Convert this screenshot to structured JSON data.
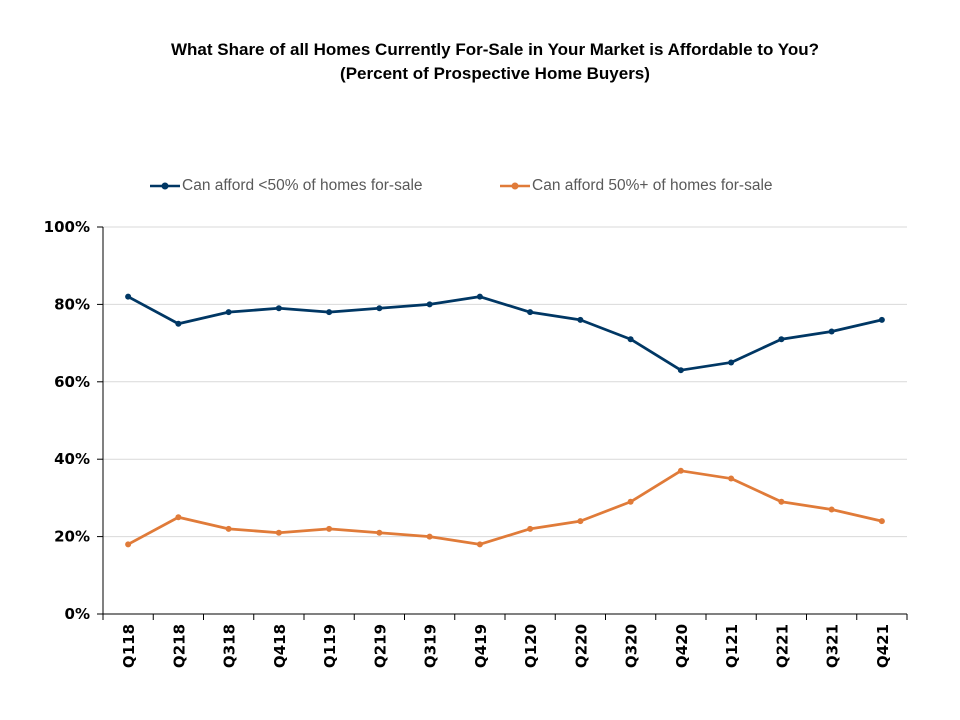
{
  "chart_data": {
    "type": "line",
    "title": "What Share of all Homes Currently For-Sale in Your Market is Affordable to You?",
    "subtitle": "(Percent of Prospective Home Buyers)",
    "categories": [
      "Q118",
      "Q218",
      "Q318",
      "Q418",
      "Q119",
      "Q219",
      "Q319",
      "Q419",
      "Q120",
      "Q220",
      "Q320",
      "Q420",
      "Q121",
      "Q221",
      "Q321",
      "Q421"
    ],
    "series": [
      {
        "name": "Can afford <50% of homes for-sale",
        "color": "#003764",
        "values": [
          82,
          75,
          78,
          79,
          78,
          79,
          80,
          82,
          78,
          76,
          71,
          63,
          65,
          71,
          73,
          76
        ]
      },
      {
        "name": "Can afford 50%+ of homes for-sale",
        "color": "#E07B39",
        "values": [
          18,
          25,
          22,
          21,
          22,
          21,
          20,
          18,
          22,
          24,
          29,
          37,
          35,
          29,
          27,
          24
        ]
      }
    ],
    "yticks": [
      "0%",
      "20%",
      "40%",
      "60%",
      "80%",
      "100%"
    ],
    "ylim": [
      0,
      100
    ],
    "xlabel": "",
    "ylabel": "",
    "grid": true,
    "legend_position": "top"
  }
}
